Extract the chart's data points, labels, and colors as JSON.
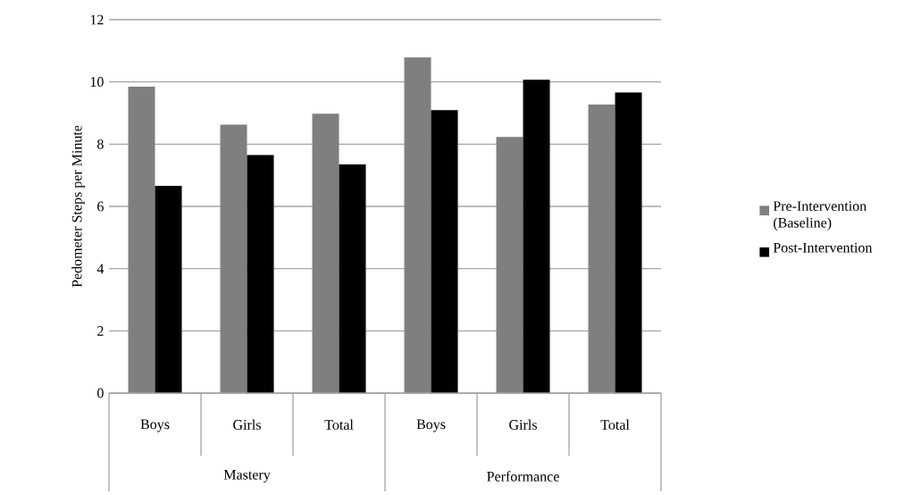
{
  "chart_data": {
    "type": "bar",
    "ylabel": "Pedometer Steps per Minute",
    "categories": [
      "Boys",
      "Girls",
      "Total",
      "Boys",
      "Girls",
      "Total"
    ],
    "annotations": [
      "Mastery",
      "Performance"
    ],
    "series": [
      {
        "name": "Pre-Intervention (Baseline)",
        "color": "#7f7f7f",
        "values": [
          9.85,
          8.63,
          8.98,
          10.79,
          8.23,
          9.27
        ]
      },
      {
        "name": "Post-Intervention",
        "color": "#000000",
        "values": [
          6.66,
          7.65,
          7.35,
          9.09,
          10.07,
          9.66
        ]
      }
    ],
    "ylim": [
      0,
      12
    ],
    "yticks": [
      0,
      2,
      4,
      6,
      8,
      10,
      12
    ],
    "grid": "y",
    "legend": "right"
  }
}
